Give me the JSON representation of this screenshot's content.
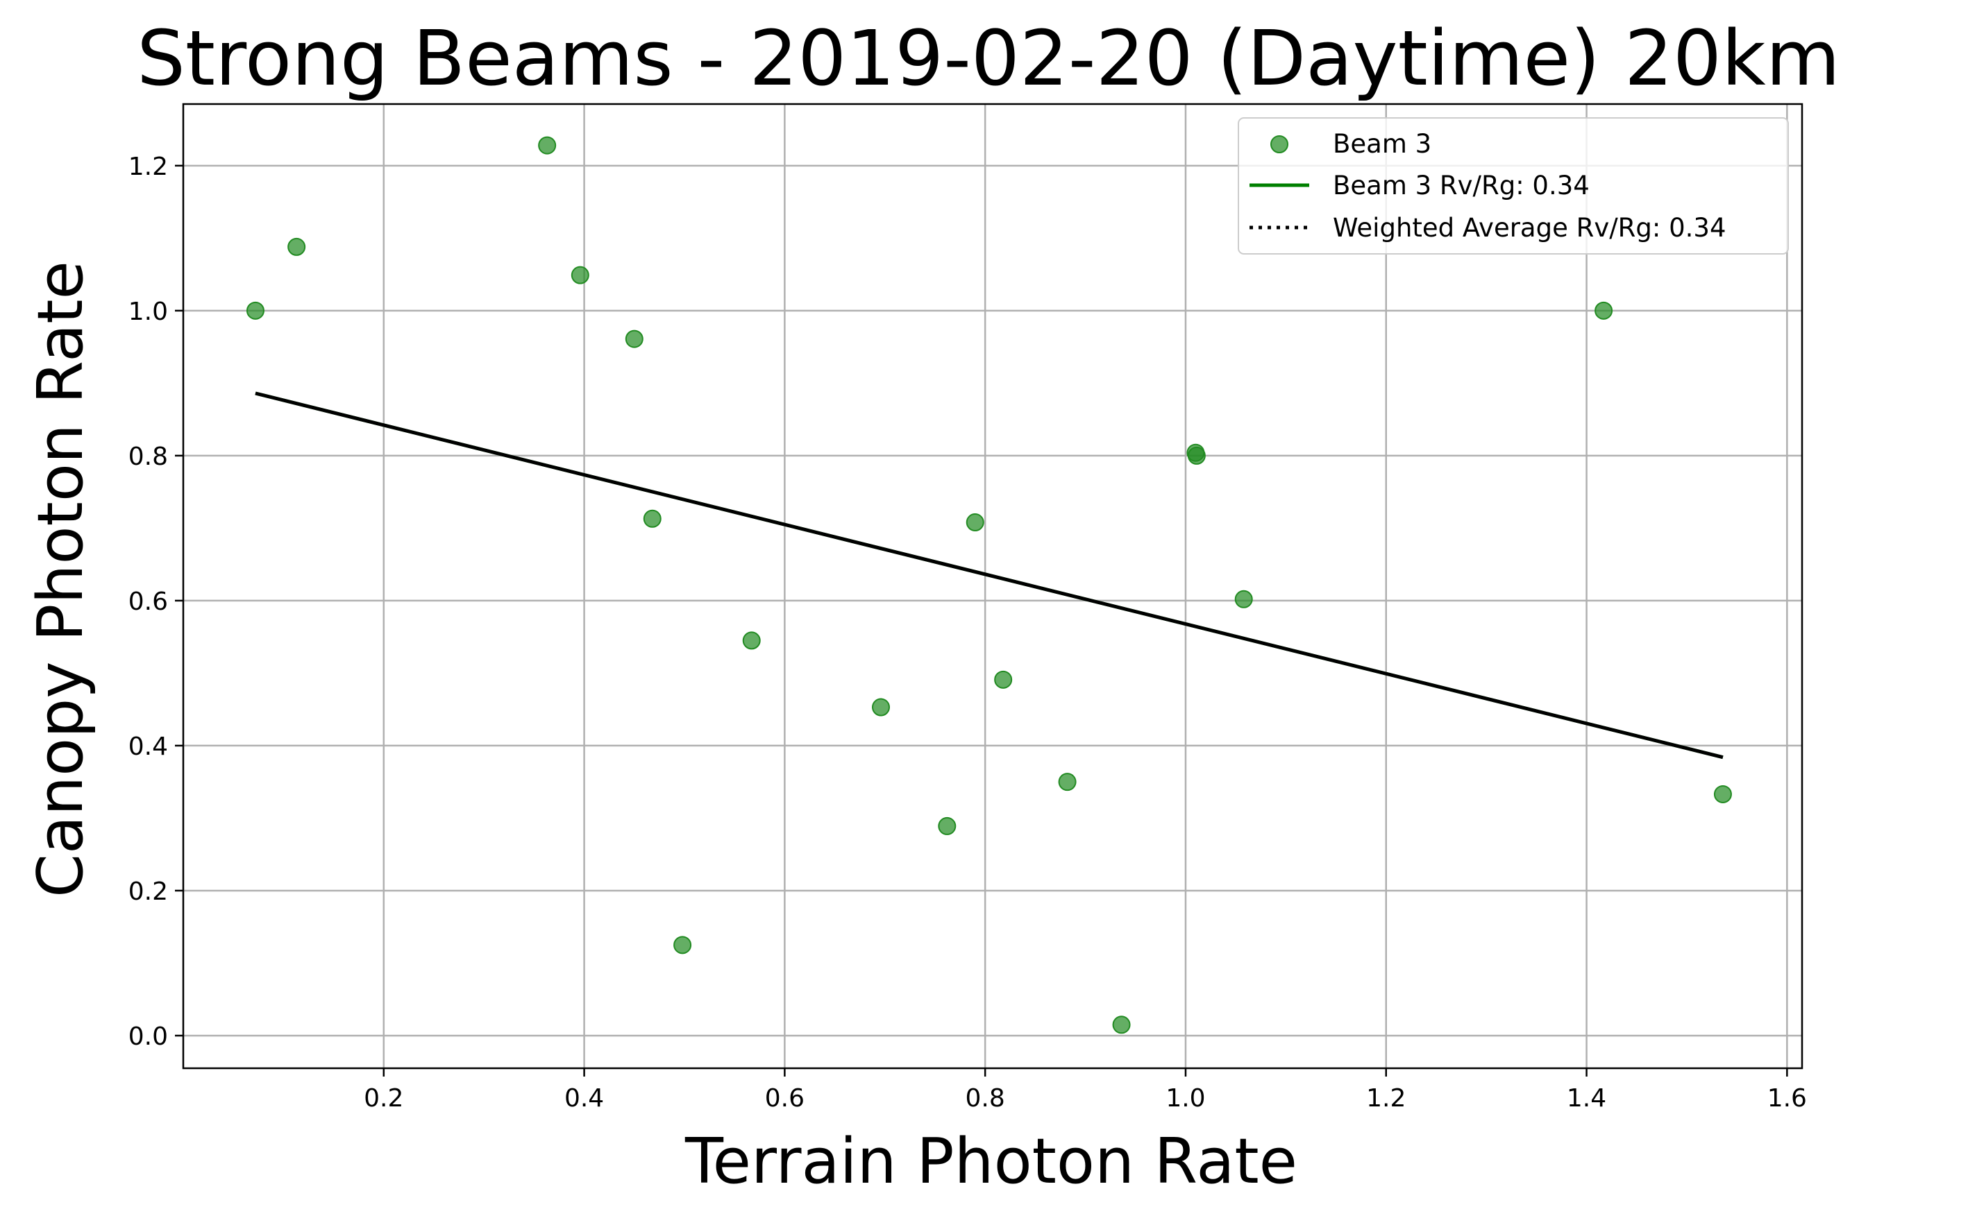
{
  "chart_data": {
    "type": "scatter",
    "title": "Strong Beams - 2019-02-20 (Daytime) 20km",
    "xlabel": "Terrain Photon Rate",
    "ylabel": "Canopy Photon Rate",
    "xlim": [
      0.0,
      1.615
    ],
    "ylim": [
      -0.045,
      1.285
    ],
    "xticks": [
      0.2,
      0.4,
      0.6,
      0.8,
      1.0,
      1.2,
      1.4,
      1.6
    ],
    "xtick_labels": [
      "0.2",
      "0.4",
      "0.6",
      "0.8",
      "1.0",
      "1.2",
      "1.4",
      "1.6"
    ],
    "yticks": [
      0.0,
      0.2,
      0.4,
      0.6,
      0.8,
      1.0,
      1.2
    ],
    "ytick_labels": [
      "0.0",
      "0.2",
      "0.4",
      "0.6",
      "0.8",
      "1.0",
      "1.2"
    ],
    "grid": true,
    "legend_position": "top-right",
    "series": [
      {
        "name": "Beam 3",
        "kind": "scatter",
        "color": "#228b22",
        "x": [
          0.072,
          0.113,
          0.363,
          0.396,
          0.45,
          0.468,
          0.498,
          0.567,
          0.696,
          0.762,
          0.79,
          0.818,
          0.882,
          0.936,
          1.01,
          1.011,
          1.058,
          1.417,
          1.536
        ],
        "y": [
          1.0,
          1.088,
          1.228,
          1.049,
          0.961,
          0.713,
          0.125,
          0.545,
          0.453,
          0.289,
          0.708,
          0.491,
          0.35,
          0.015,
          0.804,
          0.8,
          0.602,
          1.0,
          0.333
        ]
      },
      {
        "name": "Beam 3 Rv/Rg: 0.34",
        "kind": "line",
        "style": "solid",
        "color": "#008000",
        "x": [
          0.072,
          1.536
        ],
        "y": [
          0.886,
          0.384
        ]
      },
      {
        "name": "Weighted Average Rv/Rg: 0.34",
        "kind": "line",
        "style": "dotted",
        "color": "#000000",
        "x": [
          0.072,
          1.536
        ],
        "y": [
          0.886,
          0.384
        ]
      }
    ]
  }
}
